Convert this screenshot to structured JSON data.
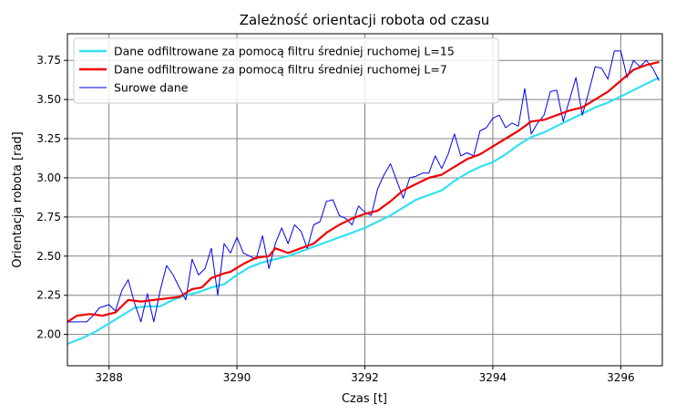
{
  "chart_data": {
    "type": "line",
    "title": "Zależność orientacji robota od czasu",
    "xlabel": "Czas [t]",
    "ylabel": "Orientacja robota [rad]",
    "xlim": [
      3287.35,
      3296.65
    ],
    "ylim": [
      1.8,
      3.92
    ],
    "xticks": [
      3288,
      3290,
      3292,
      3294,
      3296
    ],
    "yticks": [
      2.0,
      2.25,
      2.5,
      2.75,
      3.0,
      3.25,
      3.5,
      3.75
    ],
    "grid": true,
    "legend": "top-left",
    "series": [
      {
        "name": "Dane odfiltrowane za pomocą filtru średniej ruchomej L=15",
        "color": "#33e0f0",
        "x": [
          3287.35,
          3287.6,
          3287.8,
          3288.0,
          3288.2,
          3288.4,
          3288.6,
          3288.8,
          3289.0,
          3289.2,
          3289.4,
          3289.6,
          3289.8,
          3290.0,
          3290.2,
          3290.4,
          3290.6,
          3290.8,
          3291.0,
          3291.2,
          3291.4,
          3291.6,
          3291.8,
          3292.0,
          3292.2,
          3292.4,
          3292.6,
          3292.8,
          3293.0,
          3293.2,
          3293.4,
          3293.6,
          3293.8,
          3294.0,
          3294.2,
          3294.4,
          3294.6,
          3294.8,
          3295.0,
          3295.2,
          3295.4,
          3295.6,
          3295.8,
          3296.0,
          3296.2,
          3296.4,
          3296.6
        ],
        "values": [
          1.94,
          1.98,
          2.02,
          2.07,
          2.12,
          2.17,
          2.18,
          2.18,
          2.22,
          2.25,
          2.27,
          2.3,
          2.32,
          2.38,
          2.43,
          2.46,
          2.48,
          2.5,
          2.53,
          2.56,
          2.59,
          2.62,
          2.65,
          2.68,
          2.72,
          2.76,
          2.81,
          2.86,
          2.89,
          2.92,
          2.98,
          3.03,
          3.07,
          3.1,
          3.15,
          3.21,
          3.26,
          3.29,
          3.33,
          3.37,
          3.41,
          3.45,
          3.48,
          3.52,
          3.56,
          3.6,
          3.64
        ]
      },
      {
        "name": "Dane odfiltrowane za pomocą filtru średniej ruchomej L=7",
        "color": "#ee0000",
        "x": [
          3287.35,
          3287.5,
          3287.7,
          3287.9,
          3288.1,
          3288.3,
          3288.5,
          3288.7,
          3288.9,
          3289.1,
          3289.3,
          3289.45,
          3289.6,
          3289.8,
          3289.9,
          3290.1,
          3290.3,
          3290.5,
          3290.6,
          3290.8,
          3291.0,
          3291.2,
          3291.4,
          3291.6,
          3291.8,
          3292.0,
          3292.2,
          3292.4,
          3292.6,
          3292.8,
          3293.0,
          3293.2,
          3293.4,
          3293.6,
          3293.8,
          3294.0,
          3294.2,
          3294.4,
          3294.6,
          3294.8,
          3295.0,
          3295.2,
          3295.4,
          3295.6,
          3295.8,
          3296.0,
          3296.2,
          3296.4,
          3296.6
        ],
        "values": [
          2.08,
          2.12,
          2.13,
          2.12,
          2.14,
          2.22,
          2.21,
          2.22,
          2.23,
          2.24,
          2.29,
          2.3,
          2.36,
          2.39,
          2.4,
          2.45,
          2.49,
          2.5,
          2.55,
          2.52,
          2.55,
          2.58,
          2.65,
          2.7,
          2.74,
          2.77,
          2.79,
          2.85,
          2.92,
          2.96,
          3.0,
          3.02,
          3.07,
          3.12,
          3.15,
          3.2,
          3.25,
          3.3,
          3.36,
          3.37,
          3.4,
          3.43,
          3.45,
          3.5,
          3.55,
          3.62,
          3.69,
          3.72,
          3.74
        ]
      },
      {
        "name": "Surowe dane",
        "color": "#0000ee",
        "x": [
          3287.35,
          3287.5,
          3287.65,
          3287.75,
          3287.85,
          3288.0,
          3288.1,
          3288.2,
          3288.3,
          3288.4,
          3288.5,
          3288.6,
          3288.7,
          3288.8,
          3288.9,
          3289.0,
          3289.1,
          3289.2,
          3289.3,
          3289.4,
          3289.5,
          3289.6,
          3289.7,
          3289.8,
          3289.9,
          3290.0,
          3290.1,
          3290.2,
          3290.3,
          3290.4,
          3290.5,
          3290.6,
          3290.7,
          3290.8,
          3290.9,
          3291.0,
          3291.1,
          3291.2,
          3291.3,
          3291.4,
          3291.5,
          3291.6,
          3291.7,
          3291.8,
          3291.9,
          3292.0,
          3292.1,
          3292.2,
          3292.3,
          3292.4,
          3292.5,
          3292.6,
          3292.7,
          3292.8,
          3292.9,
          3293.0,
          3293.1,
          3293.2,
          3293.3,
          3293.4,
          3293.5,
          3293.6,
          3293.7,
          3293.8,
          3293.9,
          3294.0,
          3294.1,
          3294.2,
          3294.3,
          3294.4,
          3294.5,
          3294.6,
          3294.7,
          3294.8,
          3294.9,
          3295.0,
          3295.1,
          3295.2,
          3295.3,
          3295.4,
          3295.5,
          3295.6,
          3295.7,
          3295.8,
          3295.9,
          3296.0,
          3296.1,
          3296.2,
          3296.3,
          3296.4,
          3296.5,
          3296.6
        ],
        "values": [
          2.08,
          2.08,
          2.08,
          2.12,
          2.17,
          2.19,
          2.15,
          2.28,
          2.35,
          2.2,
          2.08,
          2.26,
          2.08,
          2.28,
          2.44,
          2.38,
          2.3,
          2.22,
          2.48,
          2.38,
          2.42,
          2.55,
          2.25,
          2.58,
          2.52,
          2.62,
          2.52,
          2.5,
          2.48,
          2.63,
          2.42,
          2.58,
          2.68,
          2.58,
          2.7,
          2.66,
          2.55,
          2.7,
          2.72,
          2.85,
          2.86,
          2.76,
          2.74,
          2.7,
          2.82,
          2.78,
          2.76,
          2.93,
          3.02,
          3.09,
          2.98,
          2.87,
          3.0,
          3.01,
          3.03,
          3.03,
          3.14,
          3.06,
          3.15,
          3.28,
          3.14,
          3.16,
          3.14,
          3.3,
          3.32,
          3.38,
          3.4,
          3.32,
          3.35,
          3.33,
          3.57,
          3.28,
          3.35,
          3.4,
          3.55,
          3.56,
          3.36,
          3.5,
          3.64,
          3.4,
          3.55,
          3.71,
          3.7,
          3.63,
          3.81,
          3.81,
          3.64,
          3.75,
          3.71,
          3.75,
          3.7,
          3.62
        ]
      }
    ]
  }
}
